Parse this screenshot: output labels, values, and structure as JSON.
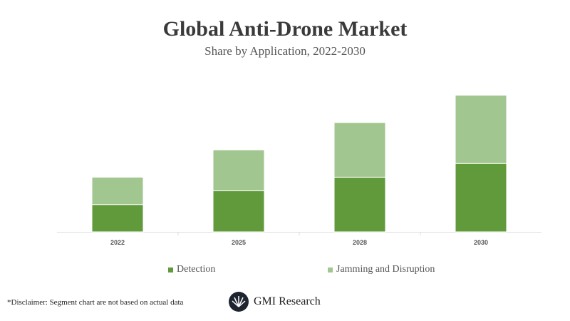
{
  "chart_data": {
    "type": "bar",
    "stacked": true,
    "title": "Global Anti-Drone Market",
    "subtitle": "Share by Application, 2022-2030",
    "categories": [
      "2022",
      "2025",
      "2028",
      "2030"
    ],
    "series": [
      {
        "name": "Detection",
        "values": [
          2,
          3,
          4,
          5
        ],
        "color": "#619a3b"
      },
      {
        "name": "Jamming and Disruption",
        "values": [
          2,
          3,
          4,
          5
        ],
        "color": "#a2c690"
      }
    ],
    "ylim": [
      0,
      10.7
    ],
    "grid": false,
    "y_axis_visible": false,
    "legend": "bottom"
  },
  "footer": {
    "disclaimer": "*Disclaimer:  Segment chart are not based on actual data",
    "logo_text": "GMI Research"
  }
}
